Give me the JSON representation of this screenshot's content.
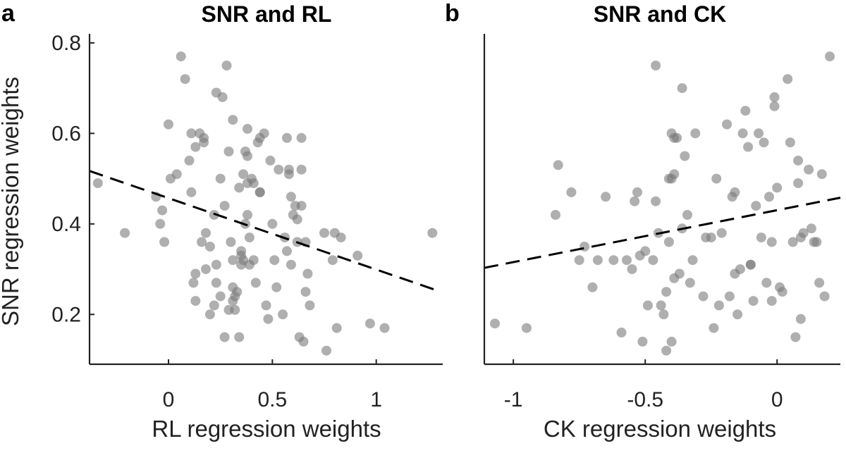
{
  "figure": {
    "y_axis_label": "SNR regression weights"
  },
  "chart_data": [
    {
      "type": "scatter",
      "panel": "a",
      "title": "SNR and RL",
      "xlabel": "RL regression weights",
      "ylabel": "SNR regression weights",
      "xlim": [
        -0.38,
        1.32
      ],
      "ylim": [
        0.09,
        0.82
      ],
      "xticks": [
        0,
        0.5,
        1
      ],
      "xtick_labels": [
        "0",
        "0.5",
        "1"
      ],
      "yticks": [
        0.2,
        0.4,
        0.6,
        0.8
      ],
      "ytick_labels": [
        "0.2",
        "0.4",
        "0.6",
        "0.8"
      ],
      "grid": false,
      "trend_line": {
        "style": "dashed",
        "x": [
          -0.38,
          1.28
        ],
        "y": [
          0.517,
          0.255
        ]
      },
      "points": [
        [
          -0.34,
          0.49
        ],
        [
          -0.21,
          0.38
        ],
        [
          -0.06,
          0.46
        ],
        [
          -0.04,
          0.4
        ],
        [
          -0.03,
          0.43
        ],
        [
          -0.02,
          0.36
        ],
        [
          0.0,
          0.62
        ],
        [
          0.01,
          0.5
        ],
        [
          0.04,
          0.51
        ],
        [
          0.06,
          0.77
        ],
        [
          0.08,
          0.72
        ],
        [
          0.1,
          0.54
        ],
        [
          0.11,
          0.6
        ],
        [
          0.11,
          0.47
        ],
        [
          0.12,
          0.27
        ],
        [
          0.13,
          0.57
        ],
        [
          0.13,
          0.29
        ],
        [
          0.13,
          0.23
        ],
        [
          0.15,
          0.6
        ],
        [
          0.16,
          0.36
        ],
        [
          0.17,
          0.59
        ],
        [
          0.17,
          0.58
        ],
        [
          0.18,
          0.3
        ],
        [
          0.18,
          0.38
        ],
        [
          0.2,
          0.35
        ],
        [
          0.2,
          0.2
        ],
        [
          0.22,
          0.22
        ],
        [
          0.22,
          0.42
        ],
        [
          0.23,
          0.69
        ],
        [
          0.23,
          0.31
        ],
        [
          0.23,
          0.27
        ],
        [
          0.25,
          0.5
        ],
        [
          0.25,
          0.24
        ],
        [
          0.26,
          0.68
        ],
        [
          0.27,
          0.44
        ],
        [
          0.27,
          0.15
        ],
        [
          0.28,
          0.75
        ],
        [
          0.29,
          0.21
        ],
        [
          0.29,
          0.56
        ],
        [
          0.3,
          0.36
        ],
        [
          0.31,
          0.63
        ],
        [
          0.31,
          0.26
        ],
        [
          0.31,
          0.23
        ],
        [
          0.31,
          0.32
        ],
        [
          0.32,
          0.21
        ],
        [
          0.32,
          0.24
        ],
        [
          0.33,
          0.25
        ],
        [
          0.34,
          0.48
        ],
        [
          0.34,
          0.15
        ],
        [
          0.35,
          0.34
        ],
        [
          0.35,
          0.33
        ],
        [
          0.35,
          0.31
        ],
        [
          0.36,
          0.32
        ],
        [
          0.36,
          0.51
        ],
        [
          0.37,
          0.4
        ],
        [
          0.37,
          0.56
        ],
        [
          0.38,
          0.55
        ],
        [
          0.38,
          0.61
        ],
        [
          0.38,
          0.42
        ],
        [
          0.38,
          0.49
        ],
        [
          0.39,
          0.37
        ],
        [
          0.39,
          0.31
        ],
        [
          0.4,
          0.5
        ],
        [
          0.41,
          0.32
        ],
        [
          0.41,
          0.49
        ],
        [
          0.42,
          0.27
        ],
        [
          0.43,
          0.58
        ],
        [
          0.44,
          0.59
        ],
        [
          0.44,
          0.47
        ],
        [
          0.44,
          0.47
        ],
        [
          0.46,
          0.6
        ],
        [
          0.47,
          0.22
        ],
        [
          0.48,
          0.19
        ],
        [
          0.49,
          0.54
        ],
        [
          0.5,
          0.4
        ],
        [
          0.51,
          0.32
        ],
        [
          0.52,
          0.26
        ],
        [
          0.53,
          0.52
        ],
        [
          0.55,
          0.2
        ],
        [
          0.56,
          0.37
        ],
        [
          0.57,
          0.59
        ],
        [
          0.57,
          0.34
        ],
        [
          0.58,
          0.52
        ],
        [
          0.58,
          0.51
        ],
        [
          0.59,
          0.31
        ],
        [
          0.59,
          0.46
        ],
        [
          0.6,
          0.42
        ],
        [
          0.61,
          0.44
        ],
        [
          0.62,
          0.41
        ],
        [
          0.62,
          0.36
        ],
        [
          0.63,
          0.15
        ],
        [
          0.64,
          0.52
        ],
        [
          0.64,
          0.59
        ],
        [
          0.64,
          0.44
        ],
        [
          0.65,
          0.14
        ],
        [
          0.66,
          0.36
        ],
        [
          0.66,
          0.25
        ],
        [
          0.67,
          0.29
        ],
        [
          0.68,
          0.22
        ],
        [
          0.75,
          0.38
        ],
        [
          0.76,
          0.12
        ],
        [
          0.79,
          0.32
        ],
        [
          0.8,
          0.38
        ],
        [
          0.81,
          0.17
        ],
        [
          0.83,
          0.37
        ],
        [
          0.91,
          0.33
        ],
        [
          0.97,
          0.18
        ],
        [
          1.04,
          0.17
        ],
        [
          1.27,
          0.38
        ]
      ]
    },
    {
      "type": "scatter",
      "panel": "b",
      "title": "SNR and CK",
      "xlabel": "CK regression weights",
      "ylabel": "SNR regression weights",
      "xlim": [
        -1.11,
        0.24
      ],
      "ylim": [
        0.09,
        0.82
      ],
      "xticks": [
        -1,
        -0.5,
        0
      ],
      "xtick_labels": [
        "-1",
        "-0.5",
        "0"
      ],
      "yticks": [],
      "ytick_labels": [],
      "grid": false,
      "trend_line": {
        "style": "dashed",
        "x": [
          -1.11,
          0.24
        ],
        "y": [
          0.303,
          0.458
        ]
      },
      "points": [
        [
          -1.07,
          0.18
        ],
        [
          -0.95,
          0.17
        ],
        [
          -0.83,
          0.53
        ],
        [
          -0.84,
          0.42
        ],
        [
          -0.78,
          0.47
        ],
        [
          -0.75,
          0.32
        ],
        [
          -0.73,
          0.35
        ],
        [
          -0.7,
          0.26
        ],
        [
          -0.68,
          0.32
        ],
        [
          -0.65,
          0.46
        ],
        [
          -0.62,
          0.32
        ],
        [
          -0.59,
          0.16
        ],
        [
          -0.57,
          0.32
        ],
        [
          -0.55,
          0.3
        ],
        [
          -0.54,
          0.45
        ],
        [
          -0.53,
          0.47
        ],
        [
          -0.52,
          0.33
        ],
        [
          -0.51,
          0.14
        ],
        [
          -0.5,
          0.34
        ],
        [
          -0.49,
          0.22
        ],
        [
          -0.47,
          0.32
        ],
        [
          -0.46,
          0.75
        ],
        [
          -0.46,
          0.45
        ],
        [
          -0.45,
          0.38
        ],
        [
          -0.44,
          0.22
        ],
        [
          -0.43,
          0.2
        ],
        [
          -0.42,
          0.12
        ],
        [
          -0.42,
          0.25
        ],
        [
          -0.41,
          0.36
        ],
        [
          -0.41,
          0.5
        ],
        [
          -0.4,
          0.14
        ],
        [
          -0.4,
          0.6
        ],
        [
          -0.4,
          0.5
        ],
        [
          -0.39,
          0.51
        ],
        [
          -0.39,
          0.59
        ],
        [
          -0.39,
          0.28
        ],
        [
          -0.38,
          0.59
        ],
        [
          -0.37,
          0.29
        ],
        [
          -0.36,
          0.7
        ],
        [
          -0.36,
          0.39
        ],
        [
          -0.35,
          0.55
        ],
        [
          -0.34,
          0.42
        ],
        [
          -0.33,
          0.27
        ],
        [
          -0.32,
          0.32
        ],
        [
          -0.31,
          0.6
        ],
        [
          -0.28,
          0.24
        ],
        [
          -0.27,
          0.37
        ],
        [
          -0.25,
          0.37
        ],
        [
          -0.24,
          0.17
        ],
        [
          -0.23,
          0.5
        ],
        [
          -0.22,
          0.22
        ],
        [
          -0.21,
          0.38
        ],
        [
          -0.19,
          0.62
        ],
        [
          -0.18,
          0.24
        ],
        [
          -0.17,
          0.46
        ],
        [
          -0.16,
          0.29
        ],
        [
          -0.16,
          0.47
        ],
        [
          -0.15,
          0.2
        ],
        [
          -0.14,
          0.3
        ],
        [
          -0.13,
          0.6
        ],
        [
          -0.12,
          0.65
        ],
        [
          -0.11,
          0.57
        ],
        [
          -0.1,
          0.31
        ],
        [
          -0.1,
          0.31
        ],
        [
          -0.09,
          0.23
        ],
        [
          -0.08,
          0.44
        ],
        [
          -0.07,
          0.6
        ],
        [
          -0.06,
          0.37
        ],
        [
          -0.05,
          0.58
        ],
        [
          -0.04,
          0.27
        ],
        [
          -0.03,
          0.46
        ],
        [
          -0.02,
          0.36
        ],
        [
          -0.02,
          0.23
        ],
        [
          -0.01,
          0.68
        ],
        [
          -0.01,
          0.66
        ],
        [
          0.0,
          0.48
        ],
        [
          0.01,
          0.26
        ],
        [
          0.02,
          0.25
        ],
        [
          0.04,
          0.72
        ],
        [
          0.05,
          0.58
        ],
        [
          0.06,
          0.36
        ],
        [
          0.07,
          0.15
        ],
        [
          0.08,
          0.54
        ],
        [
          0.08,
          0.49
        ],
        [
          0.09,
          0.37
        ],
        [
          0.09,
          0.19
        ],
        [
          0.1,
          0.38
        ],
        [
          0.12,
          0.52
        ],
        [
          0.13,
          0.39
        ],
        [
          0.14,
          0.36
        ],
        [
          0.15,
          0.36
        ],
        [
          0.16,
          0.27
        ],
        [
          0.17,
          0.51
        ],
        [
          0.18,
          0.24
        ],
        [
          0.2,
          0.77
        ]
      ]
    }
  ]
}
